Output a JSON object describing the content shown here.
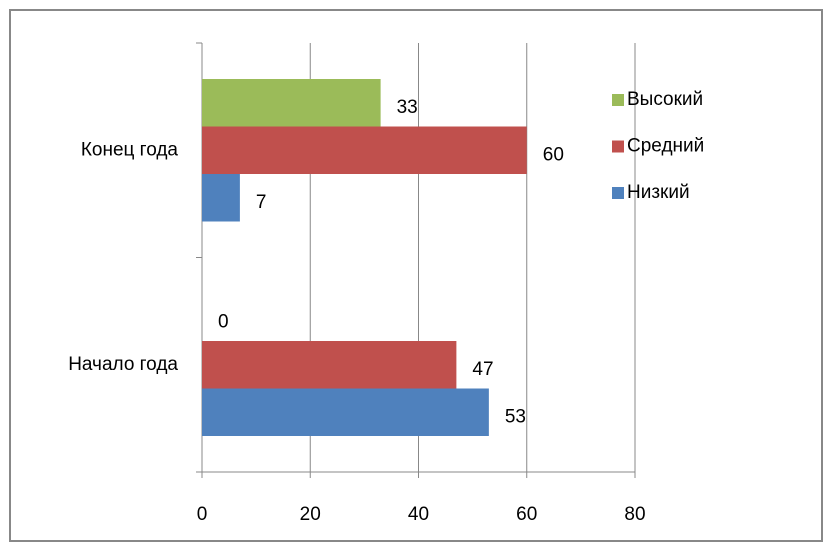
{
  "chart_data": {
    "type": "hbar",
    "categories": [
      "Начало года",
      "Конец года"
    ],
    "series": [
      {
        "name": "Низкий",
        "color": "#4f81bd",
        "values": [
          53,
          7
        ]
      },
      {
        "name": "Средний",
        "color": "#c0504d",
        "values": [
          47,
          60
        ]
      },
      {
        "name": "Высокий",
        "color": "#9bbb59",
        "values": [
          0,
          33
        ]
      }
    ],
    "xlim": [
      0,
      80
    ],
    "xticks": [
      0,
      20,
      40,
      60,
      80
    ],
    "grid": true,
    "legend": "right"
  }
}
